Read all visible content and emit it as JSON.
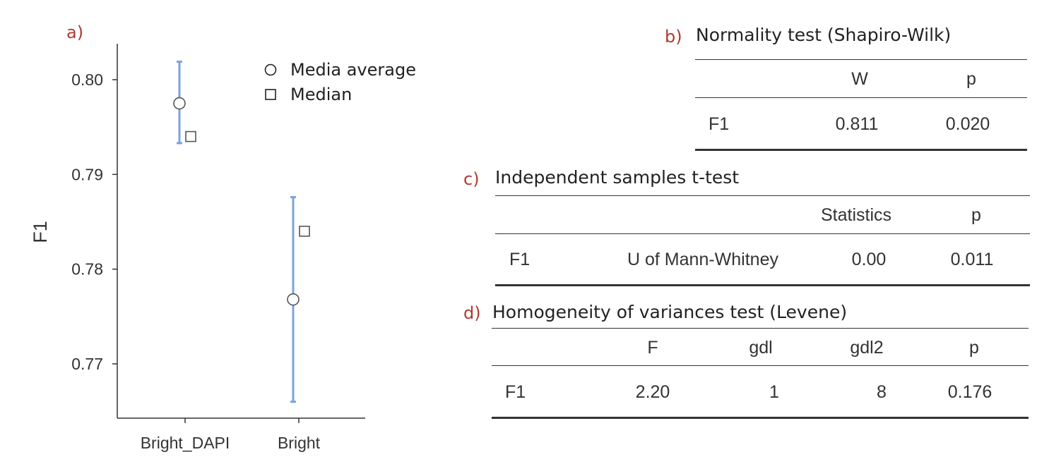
{
  "chart_data": {
    "type": "scatter",
    "panel_label": "a)",
    "xlabel": "",
    "ylabel": "F1",
    "categories": [
      "Bright_DAPI",
      "Bright"
    ],
    "ylim": [
      0.766,
      0.8035
    ],
    "yticks": [
      "0.80",
      "0.79",
      "0.78",
      "0.77"
    ],
    "ytick_values": [
      0.8,
      0.79,
      0.78,
      0.77
    ],
    "series": [
      {
        "name": "Media average",
        "marker": "circle",
        "values": [
          0.7975,
          0.7768
        ]
      },
      {
        "name": "Median",
        "marker": "square",
        "values": [
          0.794,
          0.784
        ]
      }
    ],
    "error_bars": [
      {
        "category": "Bright_DAPI",
        "low": 0.7933,
        "high": 0.8019
      },
      {
        "category": "Bright",
        "low": 0.766,
        "high": 0.7876
      }
    ],
    "error_bar_color": "#7ba3dc",
    "legend_position": "top-right",
    "grid": false
  },
  "tables": {
    "b": {
      "letter": "b)",
      "title": "Normality test (Shapiro-Wilk)",
      "headers": [
        "",
        "W",
        "p"
      ],
      "rows": [
        [
          "F1",
          "0.811",
          "0.020"
        ]
      ]
    },
    "c": {
      "letter": "c)",
      "title": "Independent samples t-test",
      "headers": [
        "",
        "",
        "Statistics",
        "p"
      ],
      "rows": [
        [
          "F1",
          "U of Mann-Whitney",
          "0.00",
          "0.011"
        ]
      ]
    },
    "d": {
      "letter": "d)",
      "title": "Homogeneity of variances test (Levene)",
      "headers": [
        "",
        "F",
        "gdl",
        "gdl2",
        "p"
      ],
      "rows": [
        [
          "F1",
          "2.20",
          "1",
          "8",
          "0.176"
        ]
      ]
    }
  }
}
